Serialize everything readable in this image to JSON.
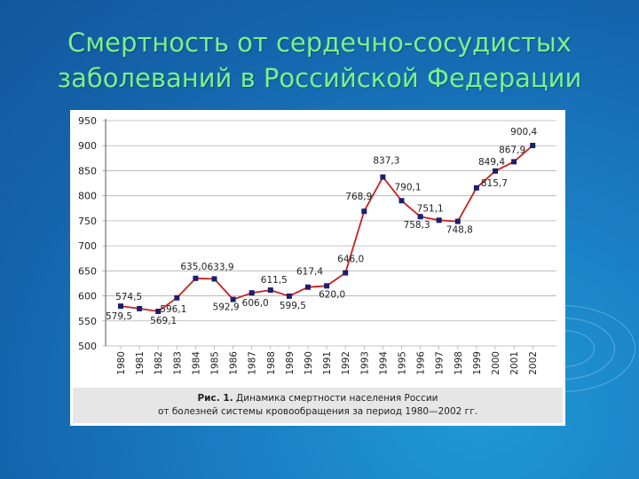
{
  "slide": {
    "title_line1": "Смертность от сердечно-сосудистых",
    "title_line2": "заболеваний в Российской Федерации"
  },
  "caption": {
    "prefix": "Рис. 1.",
    "line1_rest": " Динамика смертности населения России",
    "line2": "от болезней системы кровообращения за период 1980—2002 гг."
  },
  "colors": {
    "line": "#cc1f1f",
    "marker": "#1a1f6e",
    "title": "#7cf08a",
    "background": "#1a7fc4"
  },
  "chart_data": {
    "type": "line",
    "title": "",
    "xlabel": "",
    "ylabel": "",
    "ylim": [
      500,
      950
    ],
    "yticks": [
      500,
      550,
      600,
      650,
      700,
      750,
      800,
      850,
      900,
      950
    ],
    "grid": true,
    "categories": [
      "1980",
      "1981",
      "1982",
      "1983",
      "1984",
      "1985",
      "1986",
      "1987",
      "1988",
      "1989",
      "1990",
      "1991",
      "1992",
      "1993",
      "1994",
      "1995",
      "1996",
      "1997",
      "1998",
      "1999",
      "2000",
      "2001",
      "2002"
    ],
    "series": [
      {
        "values": [
          579.5,
          574.5,
          569.1,
          596.1,
          635.0,
          633.9,
          592.9,
          606.0,
          611.5,
          599.5,
          617.4,
          620.0,
          646.0,
          768.9,
          837.3,
          790.1,
          758.3,
          751.1,
          748.8,
          815.7,
          849.4,
          867.9,
          900.4
        ],
        "data_labels": [
          "579,5",
          "574,5",
          "569,1",
          "596,1",
          "635,0",
          "633,9",
          "592,9",
          "606,0",
          "611,5",
          "599,5",
          "617,4",
          "620,0",
          "646,0",
          "768,9",
          "837,3",
          "790,1",
          "758,3",
          "751,1",
          "748,8",
          "815,7",
          "849,4",
          "867,9",
          "900,4"
        ]
      }
    ]
  }
}
